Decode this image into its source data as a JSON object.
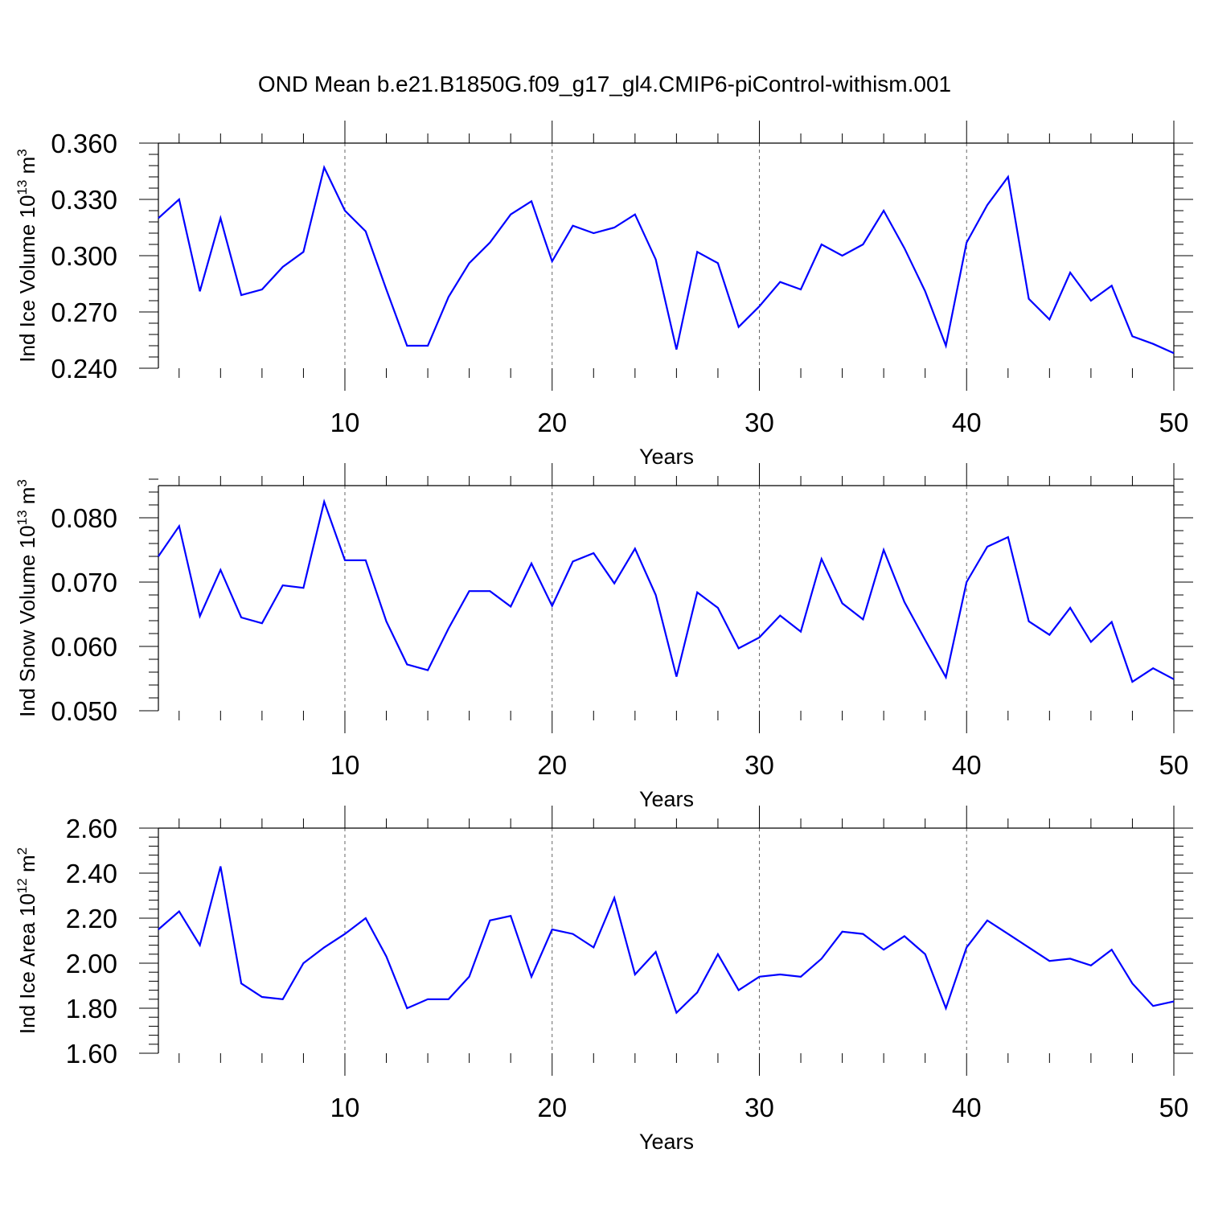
{
  "figure": {
    "title": "OND Mean b.e21.B1850G.f09_g17_gl4.CMIP6-piControl-withism.001",
    "line_color": "#0000ff"
  },
  "chart_data": [
    {
      "type": "line",
      "title": "OND Mean b.e21.B1850G.f09_g17_gl4.CMIP6-piControl-withism.001",
      "xlabel": "Years",
      "ylabel": "Ind Ice Volume",
      "ylabel_scale": "10",
      "ylabel_scale_exp": "13",
      "ylabel_unit": "m",
      "ylabel_unit_exp": "3",
      "xlim": [
        1,
        50
      ],
      "ylim": [
        0.24,
        0.36
      ],
      "xticks": [
        10,
        20,
        30,
        40,
        50
      ],
      "yticks": [
        0.24,
        0.27,
        0.3,
        0.33,
        0.36
      ],
      "ytick_labels": [
        "0.240",
        "0.270",
        "0.300",
        "0.330",
        "0.360"
      ],
      "grid": "dashed vertical at major x ticks",
      "series": [
        {
          "color": "#0000ff",
          "x": [
            1,
            2,
            3,
            4,
            5,
            6,
            7,
            8,
            9,
            10,
            11,
            12,
            13,
            14,
            15,
            16,
            17,
            18,
            19,
            20,
            21,
            22,
            23,
            24,
            25,
            26,
            27,
            28,
            29,
            30,
            31,
            32,
            33,
            34,
            35,
            36,
            37,
            38,
            39,
            40,
            41,
            42,
            43,
            44,
            45,
            46,
            47,
            48,
            49,
            50
          ],
          "values": [
            0.32,
            0.33,
            0.281,
            0.32,
            0.279,
            0.282,
            0.294,
            0.302,
            0.347,
            0.324,
            0.313,
            0.282,
            0.252,
            0.252,
            0.278,
            0.296,
            0.307,
            0.322,
            0.329,
            0.297,
            0.316,
            0.312,
            0.315,
            0.322,
            0.298,
            0.25,
            0.302,
            0.296,
            0.262,
            0.273,
            0.286,
            0.282,
            0.306,
            0.3,
            0.306,
            0.324,
            0.304,
            0.281,
            0.252,
            0.307,
            0.327,
            0.342,
            0.277,
            0.266,
            0.291,
            0.276,
            0.284,
            0.257,
            0.253,
            0.248
          ]
        }
      ]
    },
    {
      "type": "line",
      "xlabel": "Years",
      "ylabel": "Ind Snow Volume",
      "ylabel_scale": "10",
      "ylabel_scale_exp": "13",
      "ylabel_unit": "m",
      "ylabel_unit_exp": "3",
      "xlim": [
        1,
        50
      ],
      "ylim": [
        0.05,
        0.085
      ],
      "xticks": [
        10,
        20,
        30,
        40,
        50
      ],
      "yticks": [
        0.05,
        0.06,
        0.07,
        0.08
      ],
      "ytick_labels": [
        "0.050",
        "0.060",
        "0.070",
        "0.080"
      ],
      "grid": "dashed vertical at major x ticks",
      "series": [
        {
          "color": "#0000ff",
          "x": [
            1,
            2,
            3,
            4,
            5,
            6,
            7,
            8,
            9,
            10,
            11,
            12,
            13,
            14,
            15,
            16,
            17,
            18,
            19,
            20,
            21,
            22,
            23,
            24,
            25,
            26,
            27,
            28,
            29,
            30,
            31,
            32,
            33,
            34,
            35,
            36,
            37,
            38,
            39,
            40,
            41,
            42,
            43,
            44,
            45,
            46,
            47,
            48,
            49,
            50
          ],
          "values": [
            0.074,
            0.0787,
            0.0647,
            0.0719,
            0.0645,
            0.0636,
            0.0695,
            0.0691,
            0.0825,
            0.0734,
            0.0734,
            0.0639,
            0.0572,
            0.0563,
            0.0628,
            0.0686,
            0.0686,
            0.0662,
            0.0729,
            0.0663,
            0.0732,
            0.0745,
            0.0698,
            0.0752,
            0.068,
            0.0553,
            0.0684,
            0.066,
            0.0597,
            0.0614,
            0.0648,
            0.0623,
            0.0736,
            0.0667,
            0.0642,
            0.075,
            0.0669,
            0.061,
            0.0552,
            0.07,
            0.0755,
            0.077,
            0.0639,
            0.0618,
            0.066,
            0.0607,
            0.0638,
            0.0545,
            0.0566,
            0.0549
          ]
        }
      ]
    },
    {
      "type": "line",
      "xlabel": "Years",
      "ylabel": "Ind Ice Area",
      "ylabel_scale": "10",
      "ylabel_scale_exp": "12",
      "ylabel_unit": "m",
      "ylabel_unit_exp": "2",
      "xlim": [
        1,
        50
      ],
      "ylim": [
        1.6,
        2.6
      ],
      "xticks": [
        10,
        20,
        30,
        40,
        50
      ],
      "yticks": [
        1.6,
        1.8,
        2.0,
        2.2,
        2.4,
        2.6
      ],
      "ytick_labels": [
        "1.60",
        "1.80",
        "2.00",
        "2.20",
        "2.40",
        "2.60"
      ],
      "grid": "dashed vertical at major x ticks",
      "series": [
        {
          "color": "#0000ff",
          "x": [
            1,
            2,
            3,
            4,
            5,
            6,
            7,
            8,
            9,
            10,
            11,
            12,
            13,
            14,
            15,
            16,
            17,
            18,
            19,
            20,
            21,
            22,
            23,
            24,
            25,
            26,
            27,
            28,
            29,
            30,
            31,
            32,
            33,
            34,
            35,
            36,
            37,
            38,
            39,
            40,
            41,
            42,
            43,
            44,
            45,
            46,
            47,
            48,
            49,
            50
          ],
          "values": [
            2.15,
            2.23,
            2.08,
            2.43,
            1.91,
            1.85,
            1.84,
            2.0,
            2.07,
            2.13,
            2.2,
            2.03,
            1.8,
            1.84,
            1.84,
            1.94,
            2.19,
            2.21,
            1.94,
            2.15,
            2.13,
            2.07,
            2.29,
            1.95,
            2.05,
            1.78,
            1.87,
            2.04,
            1.88,
            1.94,
            1.95,
            1.94,
            2.02,
            2.14,
            2.13,
            2.06,
            2.12,
            2.04,
            1.8,
            2.07,
            2.19,
            2.13,
            2.07,
            2.01,
            2.02,
            1.99,
            2.06,
            1.91,
            1.81,
            1.83
          ]
        }
      ]
    }
  ]
}
